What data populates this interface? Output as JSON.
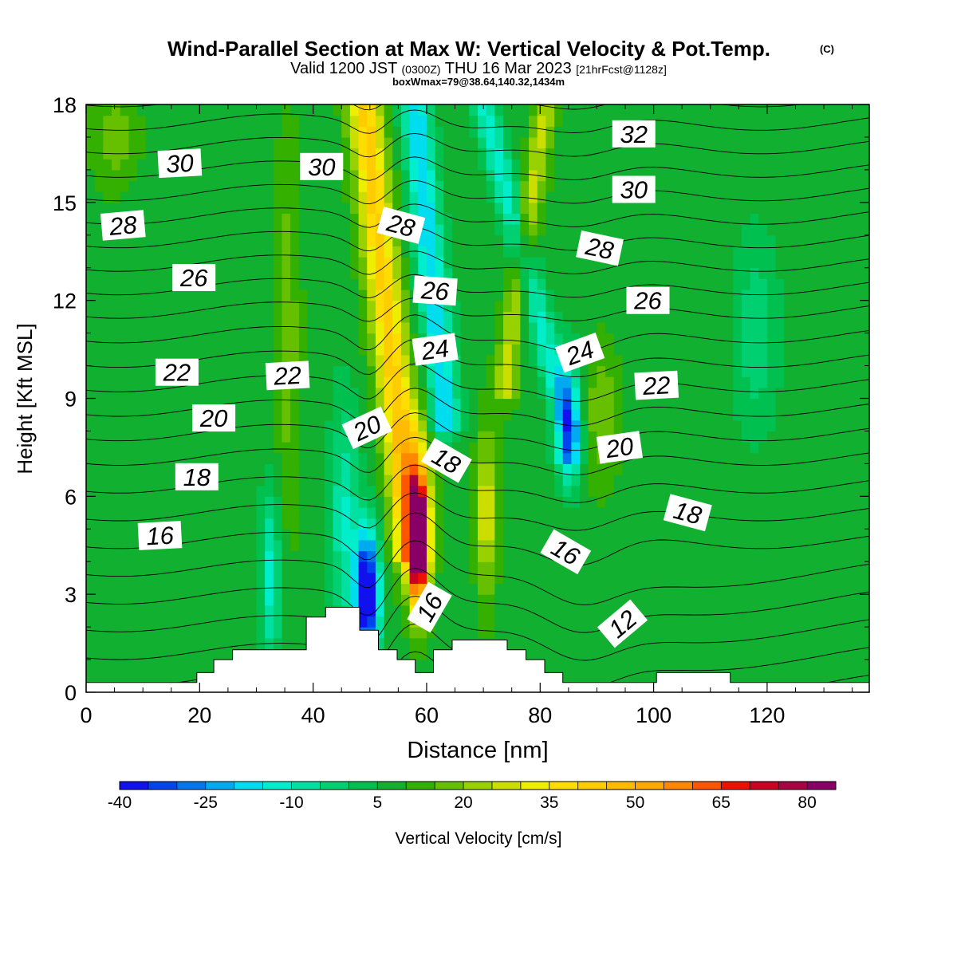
{
  "chart_data": {
    "type": "heatmap",
    "title": {
      "main": "Wind-Parallel Section at Max W: Vertical Velocity & Pot.Temp.",
      "copyright": "(C)",
      "valid_prefix": "Valid 1200 JST",
      "valid_utc": "(0300Z)",
      "valid_date": "THU 16 Mar 2023",
      "forecast": "[21hrFcst@1128z]",
      "boxwmax": "boxWmax=79@38.64,140.32,1434m"
    },
    "xlabel": "Distance [nm]",
    "ylabel": "Height [Kft MSL]",
    "xlim": [
      0,
      138
    ],
    "ylim": [
      0,
      18
    ],
    "xticks": [
      "0",
      "20",
      "40",
      "60",
      "80",
      "100",
      "120"
    ],
    "xtick_values": [
      0,
      20,
      40,
      60,
      80,
      100,
      120
    ],
    "yticks": [
      "0",
      "3",
      "6",
      "9",
      "12",
      "15",
      "18"
    ],
    "ytick_values": [
      0,
      3,
      6,
      9,
      12,
      15,
      18
    ],
    "colorbar": {
      "label": "Vertical Velocity [cm/s]",
      "tick_labels": [
        "-40",
        "-25",
        "-10",
        "5",
        "20",
        "35",
        "50",
        "65",
        "80"
      ],
      "tick_values": [
        -40,
        -25,
        -10,
        5,
        20,
        35,
        50,
        65,
        80
      ],
      "range": [
        -40,
        85
      ],
      "interval": 5,
      "colors": [
        "#1111ee",
        "#0044ee",
        "#0077ee",
        "#00aaee",
        "#00ddee",
        "#00eecc",
        "#00e0a0",
        "#00d070",
        "#00c050",
        "#11b030",
        "#33b000",
        "#66c000",
        "#99d000",
        "#ccdd00",
        "#eeee00",
        "#ffdd00",
        "#ffcc00",
        "#ffbb00",
        "#ffaa00",
        "#ff8800",
        "#ff5500",
        "#ee1100",
        "#cc0022",
        "#aa0044",
        "#880066"
      ]
    },
    "theta_contours": {
      "levels": [
        10,
        11,
        12,
        13,
        14,
        15,
        16,
        17,
        18,
        19,
        20,
        21,
        22,
        23,
        24,
        25,
        26,
        27,
        28,
        29,
        30,
        31,
        32,
        33
      ],
      "labels": [
        {
          "text": "30",
          "x": 16.5,
          "y": 16.2,
          "angle": -3
        },
        {
          "text": "30",
          "x": 41.5,
          "y": 16.1,
          "angle": 0
        },
        {
          "text": "32",
          "x": 96.5,
          "y": 17.1,
          "angle": 0
        },
        {
          "text": "30",
          "x": 96.5,
          "y": 15.4,
          "angle": 0
        },
        {
          "text": "28",
          "x": 6.5,
          "y": 14.3,
          "angle": -5
        },
        {
          "text": "28",
          "x": 55.5,
          "y": 14.3,
          "angle": 15
        },
        {
          "text": "28",
          "x": 90.5,
          "y": 13.6,
          "angle": 12
        },
        {
          "text": "26",
          "x": 19.0,
          "y": 12.7,
          "angle": 0
        },
        {
          "text": "26",
          "x": 61.5,
          "y": 12.3,
          "angle": 4
        },
        {
          "text": "26",
          "x": 99.0,
          "y": 12.0,
          "angle": 0
        },
        {
          "text": "24",
          "x": 61.5,
          "y": 10.5,
          "angle": -8
        },
        {
          "text": "24",
          "x": 87.0,
          "y": 10.4,
          "angle": -20
        },
        {
          "text": "22",
          "x": 16.0,
          "y": 9.8,
          "angle": 0
        },
        {
          "text": "22",
          "x": 35.5,
          "y": 9.7,
          "angle": -3
        },
        {
          "text": "22",
          "x": 100.5,
          "y": 9.4,
          "angle": -3
        },
        {
          "text": "20",
          "x": 22.5,
          "y": 8.4,
          "angle": 0
        },
        {
          "text": "20",
          "x": 49.5,
          "y": 8.1,
          "angle": -25
        },
        {
          "text": "20",
          "x": 94.0,
          "y": 7.5,
          "angle": -8
        },
        {
          "text": "18",
          "x": 19.5,
          "y": 6.6,
          "angle": 0
        },
        {
          "text": "18",
          "x": 63.5,
          "y": 7.1,
          "angle": 30
        },
        {
          "text": "18",
          "x": 106.0,
          "y": 5.5,
          "angle": 15
        },
        {
          "text": "16",
          "x": 13.0,
          "y": 4.8,
          "angle": -3
        },
        {
          "text": "16",
          "x": 84.5,
          "y": 4.3,
          "angle": 30
        },
        {
          "text": "16",
          "x": 60.5,
          "y": 2.6,
          "angle": -60
        },
        {
          "text": "12",
          "x": 94.5,
          "y": 2.1,
          "angle": -40
        }
      ]
    },
    "terrain_nm_kft": [
      [
        0,
        0.3
      ],
      [
        19.5,
        0.3
      ],
      [
        19.5,
        0.6
      ],
      [
        22.5,
        0.6
      ],
      [
        22.5,
        1.0
      ],
      [
        25.8,
        1.0
      ],
      [
        25.8,
        1.3
      ],
      [
        38.8,
        1.3
      ],
      [
        38.8,
        2.3
      ],
      [
        42.2,
        2.3
      ],
      [
        42.2,
        2.6
      ],
      [
        48.2,
        2.6
      ],
      [
        48.2,
        1.9
      ],
      [
        51.5,
        1.9
      ],
      [
        51.5,
        1.3
      ],
      [
        54.8,
        1.3
      ],
      [
        54.8,
        1.0
      ],
      [
        58.0,
        1.0
      ],
      [
        58.0,
        0.6
      ],
      [
        61.2,
        0.6
      ],
      [
        61.2,
        1.3
      ],
      [
        64.5,
        1.3
      ],
      [
        64.5,
        1.6
      ],
      [
        74.2,
        1.6
      ],
      [
        74.2,
        1.3
      ],
      [
        77.5,
        1.3
      ],
      [
        77.5,
        1.0
      ],
      [
        80.8,
        1.0
      ],
      [
        80.8,
        0.6
      ],
      [
        84.0,
        0.6
      ],
      [
        84.0,
        0.3
      ],
      [
        100.5,
        0.3
      ],
      [
        100.5,
        0.6
      ],
      [
        113.5,
        0.6
      ],
      [
        113.5,
        0.3
      ],
      [
        138,
        0.3
      ]
    ],
    "w_background": 8,
    "w_features": [
      {
        "name": "updraft-core",
        "x": 58.5,
        "y": 4.5,
        "w": 80,
        "sx": 1.6,
        "sy": 1.9
      },
      {
        "name": "updraft-shoulder",
        "x": 58.0,
        "y": 6.0,
        "w": 22,
        "sx": 3.0,
        "sy": 2.6
      },
      {
        "name": "tilted-updraft-band",
        "x0": 57.0,
        "y0": 5.0,
        "x1": 49.0,
        "y1": 18.0,
        "w": 34,
        "sx": 3.0
      },
      {
        "name": "downdraft-core",
        "x": 49.5,
        "y": 3.0,
        "w": -56,
        "sx": 2.2,
        "sy": 2.0
      },
      {
        "name": "downdraft-column",
        "x": 45.5,
        "y": 5.5,
        "w": -18,
        "sx": 2.5,
        "sy": 3.5
      },
      {
        "name": "downdraft-left",
        "x": 32.5,
        "y": 3.5,
        "w": -20,
        "sx": 1.8,
        "sy": 2.8
      },
      {
        "name": "tilted-downdraft-band",
        "x0": 63.0,
        "y0": 9.0,
        "x1": 58.0,
        "y1": 18.0,
        "w": -28,
        "sx": 2.6
      },
      {
        "name": "tilted-downdraft-band-2",
        "x0": 85.0,
        "y0": 8.0,
        "x1": 70.0,
        "y1": 18.0,
        "w": -20,
        "sx": 2.4
      },
      {
        "name": "lee-downdraft",
        "x": 85.0,
        "y": 8.5,
        "w": -25,
        "sx": 2.0,
        "sy": 2.0
      },
      {
        "name": "updraft-secondary",
        "x": 70.5,
        "y": 5.5,
        "w": 22,
        "sx": 1.8,
        "sy": 2.5
      },
      {
        "name": "tilted-updraft-band-2",
        "x0": 74.0,
        "y0": 10.0,
        "x1": 81.0,
        "y1": 18.0,
        "w": 18,
        "sx": 2.0
      },
      {
        "name": "updraft-right",
        "x": 91.0,
        "y": 8.5,
        "w": 12,
        "sx": 3.0,
        "sy": 2.0
      },
      {
        "name": "weak-downdraft-far-right",
        "x": 118.0,
        "y": 11.0,
        "w": -12,
        "sx": 4.0,
        "sy": 3.0
      },
      {
        "name": "weak-updraft-left",
        "x": 35.5,
        "y": 11.0,
        "w": 10,
        "sx": 2.2,
        "sy": 6.0
      },
      {
        "name": "weak-updraft-upperleft",
        "x": 5.0,
        "y": 17.0,
        "w": 10,
        "sx": 4.0,
        "sy": 1.5
      }
    ]
  }
}
